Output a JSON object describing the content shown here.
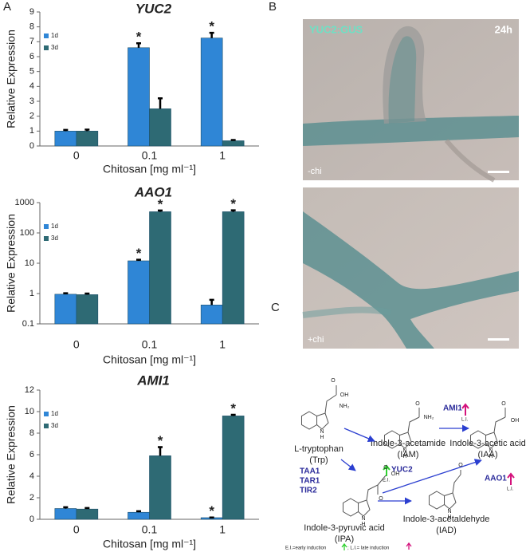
{
  "panel_labels": [
    "A",
    "B",
    "C"
  ],
  "chart_data": [
    {
      "type": "bar",
      "title": "YUC2",
      "categories": [
        "0",
        "0.1",
        "1"
      ],
      "x_label": "Chitosan [mg ml⁻¹]",
      "y_label": "Relative Expression",
      "ylim": [
        0,
        9
      ],
      "yticks": [
        0,
        1,
        2,
        3,
        4,
        5,
        6,
        7,
        8,
        9
      ],
      "legend": "upper left",
      "series": [
        {
          "name": "1d",
          "color": "#2f86d6",
          "values": [
            1,
            6.6,
            7.25
          ],
          "errors": [
            0.08,
            0.3,
            0.35
          ],
          "annotations": [
            null,
            "*",
            "*"
          ]
        },
        {
          "name": "3d",
          "color": "#2e6a74",
          "values": [
            1,
            2.5,
            0.35
          ],
          "errors": [
            0.1,
            0.7,
            0.05
          ],
          "annotations": [
            null,
            null,
            null
          ]
        }
      ]
    },
    {
      "type": "bar",
      "title": "AAO1",
      "categories": [
        "0",
        "0.1",
        "1"
      ],
      "x_label": "Chitosan [mg ml⁻¹]",
      "y_label": "Relative Expression",
      "log_scale": true,
      "ylim": [
        0.1,
        1000
      ],
      "yticks": [
        0.1,
        1,
        10,
        100,
        1000
      ],
      "legend": "upper left",
      "series": [
        {
          "name": "1d",
          "color": "#2f86d6",
          "values": [
            0.95,
            12,
            0.42
          ],
          "errors": [
            0.07,
            1,
            0.2
          ],
          "annotations": [
            null,
            "*",
            null
          ]
        },
        {
          "name": "3d",
          "color": "#2e6a74",
          "values": [
            0.92,
            500,
            500
          ],
          "errors": [
            0.08,
            50,
            60
          ],
          "annotations": [
            null,
            "*",
            "*"
          ]
        }
      ]
    },
    {
      "type": "bar",
      "title": "AMI1",
      "categories": [
        "0",
        "0.1",
        "1"
      ],
      "x_label": "Chitosan [mg ml⁻¹]",
      "y_label": "Relative Expression",
      "ylim": [
        0,
        12
      ],
      "yticks": [
        0,
        2,
        4,
        6,
        8,
        10,
        12
      ],
      "legend": "upper left",
      "series": [
        {
          "name": "1d",
          "color": "#2f86d6",
          "values": [
            1,
            0.65,
            0.15
          ],
          "errors": [
            0.12,
            0.1,
            0.02
          ],
          "annotations": [
            null,
            null,
            "*"
          ]
        },
        {
          "name": "3d",
          "color": "#2e6a74",
          "values": [
            0.95,
            5.9,
            9.6
          ],
          "errors": [
            0.1,
            0.8,
            0.1
          ],
          "annotations": [
            null,
            "*",
            "*"
          ]
        }
      ]
    }
  ],
  "micrographs": [
    {
      "stain": "YUC2:GUS",
      "time": "24h",
      "condition": "-chi"
    },
    {
      "condition": "+chi"
    }
  ],
  "pathway": {
    "compounds": [
      {
        "name": "L-tryptophan",
        "abbr": "(Trp)"
      },
      {
        "name": "Indole-3-acetamide",
        "abbr": "(IAM)"
      },
      {
        "name": "Indole-3-acetic acid",
        "abbr": "(IAA)"
      },
      {
        "name": "Indole-3-pyruvic acid",
        "abbr": "(IPA)"
      },
      {
        "name": "Indole-3-acetaldehyde",
        "abbr": "(IAD)"
      }
    ],
    "structures": [
      {
        "atoms": [
          "OH",
          "O",
          "NH₂",
          "N",
          "H"
        ]
      },
      {
        "atoms": [
          "O",
          "NH₂",
          "N",
          "H"
        ]
      },
      {
        "atoms": [
          "O",
          "OH",
          "N",
          "H"
        ]
      },
      {
        "atoms": [
          "O",
          "OH",
          "O",
          "N",
          "H"
        ]
      },
      {
        "atoms": [
          "O",
          "N",
          "H"
        ]
      }
    ],
    "enzymes": {
      "taa": [
        "TAA1",
        "TAR1",
        "TIR2"
      ],
      "yuc": {
        "name": "YUC2",
        "induction": "E.I."
      },
      "ami": {
        "name": "AMI1",
        "induction": "L.I."
      },
      "aao": {
        "name": "AAO1",
        "induction": "L.I."
      }
    },
    "legend": [
      "E.I.=early induction",
      "; L.I.= late induction"
    ]
  }
}
